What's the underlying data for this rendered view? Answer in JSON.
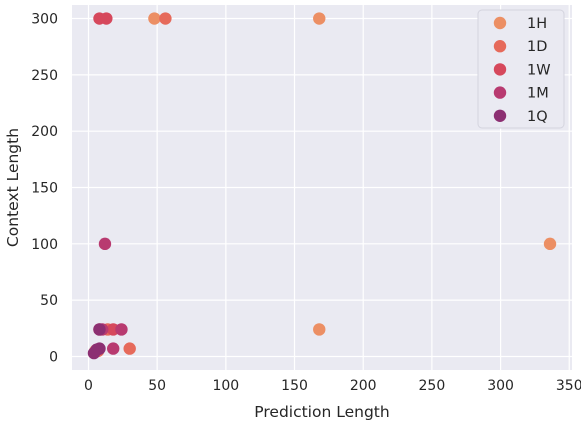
{
  "chart_data": {
    "type": "scatter",
    "xlabel": "Prediction Length",
    "ylabel": "Context Length",
    "xlim": [
      -12,
      352
    ],
    "ylim": [
      -12,
      312
    ],
    "xticks": [
      0,
      50,
      100,
      150,
      200,
      250,
      300,
      350
    ],
    "yticks": [
      0,
      50,
      100,
      150,
      200,
      250,
      300
    ],
    "grid": true,
    "legend_position": "top-right",
    "series": [
      {
        "name": "1H",
        "color": "#ec8f64",
        "points": [
          [
            48,
            300
          ],
          [
            168,
            300
          ],
          [
            336,
            100
          ],
          [
            168,
            24
          ],
          [
            5,
            5
          ]
        ]
      },
      {
        "name": "1D",
        "color": "#e66a5b",
        "points": [
          [
            56,
            300
          ],
          [
            30,
            7
          ],
          [
            14,
            24
          ],
          [
            7,
            5
          ]
        ]
      },
      {
        "name": "1W",
        "color": "#d6485c",
        "points": [
          [
            8,
            300
          ],
          [
            13,
            300
          ],
          [
            18,
            24
          ],
          [
            8,
            24
          ]
        ]
      },
      {
        "name": "1M",
        "color": "#b83a70",
        "points": [
          [
            12,
            100
          ],
          [
            24,
            24
          ],
          [
            18,
            7
          ],
          [
            10,
            24
          ],
          [
            6,
            6
          ]
        ]
      },
      {
        "name": "1Q",
        "color": "#8c2f72",
        "points": [
          [
            8,
            24
          ],
          [
            8,
            7
          ],
          [
            6,
            6
          ],
          [
            4,
            3
          ]
        ]
      }
    ]
  }
}
